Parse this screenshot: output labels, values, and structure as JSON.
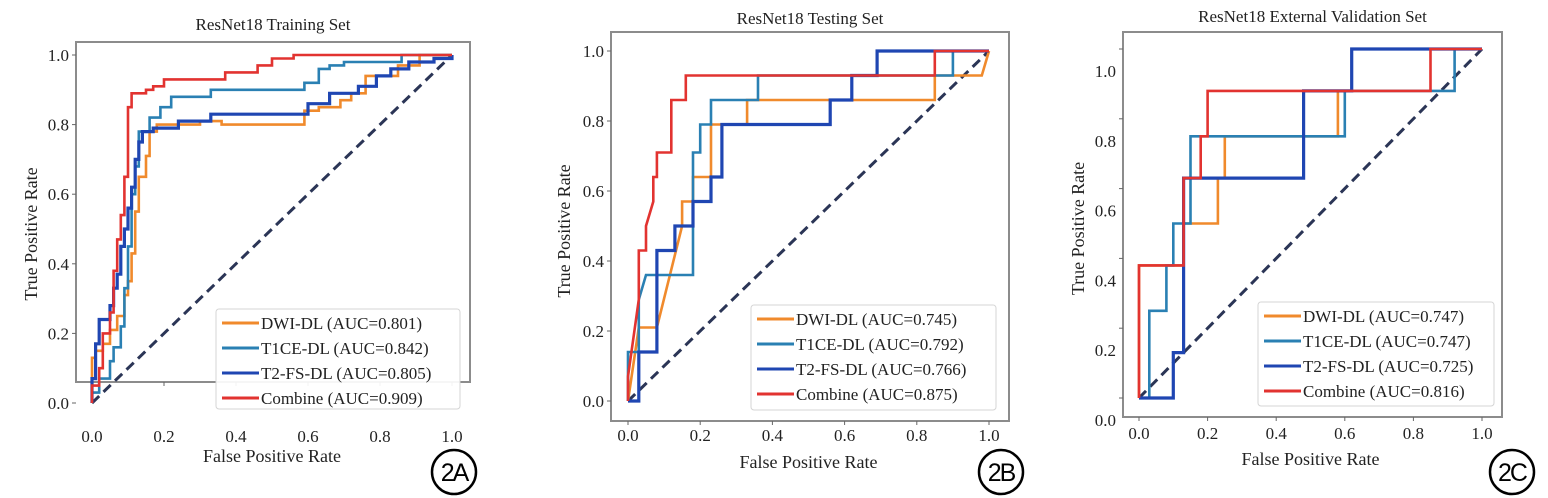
{
  "colors": {
    "DWI-DL": "#f08a2c",
    "T1CE-DL": "#2a80b3",
    "T2-FS-DL": "#1f46b2",
    "Combine": "#e23330",
    "chance": "#2b3556",
    "frame": "#8c8c8c",
    "legend_border": "#d5d5d5"
  },
  "chart_data": [
    {
      "id": "panelA",
      "type": "line",
      "badge": "2A",
      "title": "ResNet18 Training Set",
      "xlabel": "False Positive Rate",
      "ylabel": "True Positive Rate",
      "xlim": [
        0,
        1
      ],
      "ylim": [
        0,
        1
      ],
      "xticks": [
        "0.0",
        "0.2",
        "0.4",
        "0.6",
        "0.8",
        "1.0"
      ],
      "yticks": [
        "0.0",
        "0.2",
        "0.4",
        "0.6",
        "0.8",
        "1.0"
      ],
      "legend_position": "lower-right",
      "grid": false,
      "series": [
        {
          "name": "DWI-DL",
          "label": "DWI-DL (AUC=0.801)",
          "auc": 0.801,
          "x": [
            0,
            0,
            0.01,
            0.01,
            0.03,
            0.03,
            0.05,
            0.05,
            0.07,
            0.07,
            0.09,
            0.09,
            0.1,
            0.1,
            0.11,
            0.11,
            0.12,
            0.12,
            0.13,
            0.13,
            0.15,
            0.15,
            0.16,
            0.16,
            0.18,
            0.18,
            0.3,
            0.3,
            0.36,
            0.36,
            0.59,
            0.59,
            0.63,
            0.63,
            0.69,
            0.69,
            0.72,
            0.72,
            0.76,
            0.76,
            0.85,
            0.85,
            0.91,
            0.91,
            1.0
          ],
          "y": [
            0,
            0.13,
            0.13,
            0.15,
            0.15,
            0.17,
            0.17,
            0.21,
            0.21,
            0.25,
            0.25,
            0.31,
            0.31,
            0.35,
            0.35,
            0.43,
            0.43,
            0.55,
            0.55,
            0.65,
            0.65,
            0.71,
            0.71,
            0.78,
            0.78,
            0.8,
            0.8,
            0.81,
            0.81,
            0.8,
            0.8,
            0.84,
            0.84,
            0.85,
            0.85,
            0.87,
            0.87,
            0.89,
            0.89,
            0.94,
            0.94,
            0.97,
            0.97,
            1.0,
            1.0
          ]
        },
        {
          "name": "T1CE-DL",
          "label": "T1CE-DL (AUC=0.842)",
          "auc": 0.842,
          "x": [
            0,
            0,
            0.02,
            0.02,
            0.05,
            0.05,
            0.06,
            0.06,
            0.08,
            0.08,
            0.09,
            0.09,
            0.1,
            0.1,
            0.11,
            0.11,
            0.12,
            0.12,
            0.13,
            0.13,
            0.16,
            0.16,
            0.19,
            0.19,
            0.22,
            0.22,
            0.33,
            0.33,
            0.59,
            0.59,
            0.63,
            0.63,
            0.66,
            0.66,
            0.7,
            0.7,
            0.86,
            0.86,
            1.0
          ],
          "y": [
            0,
            0.03,
            0.03,
            0.07,
            0.07,
            0.12,
            0.12,
            0.16,
            0.16,
            0.22,
            0.22,
            0.33,
            0.33,
            0.45,
            0.45,
            0.6,
            0.6,
            0.68,
            0.68,
            0.78,
            0.78,
            0.82,
            0.82,
            0.85,
            0.85,
            0.88,
            0.88,
            0.9,
            0.9,
            0.92,
            0.92,
            0.96,
            0.96,
            0.97,
            0.97,
            0.98,
            0.98,
            1.0,
            1.0
          ]
        },
        {
          "name": "T2-FS-DL",
          "label": "T2-FS-DL (AUC=0.805)",
          "auc": 0.805,
          "x": [
            0,
            0,
            0.01,
            0.01,
            0.02,
            0.02,
            0.05,
            0.05,
            0.06,
            0.06,
            0.07,
            0.07,
            0.08,
            0.08,
            0.09,
            0.09,
            0.1,
            0.1,
            0.11,
            0.11,
            0.12,
            0.12,
            0.13,
            0.13,
            0.14,
            0.14,
            0.17,
            0.17,
            0.24,
            0.24,
            0.33,
            0.33,
            0.6,
            0.6,
            0.66,
            0.66,
            0.74,
            0.74,
            0.79,
            0.79,
            0.83,
            0.83,
            0.88,
            0.88,
            0.95,
            0.95,
            1.0,
            1.0
          ],
          "y": [
            0,
            0.07,
            0.07,
            0.17,
            0.17,
            0.24,
            0.24,
            0.28,
            0.28,
            0.33,
            0.33,
            0.37,
            0.37,
            0.45,
            0.45,
            0.5,
            0.5,
            0.56,
            0.56,
            0.62,
            0.62,
            0.7,
            0.7,
            0.75,
            0.75,
            0.78,
            0.78,
            0.79,
            0.79,
            0.81,
            0.81,
            0.83,
            0.83,
            0.86,
            0.86,
            0.89,
            0.89,
            0.91,
            0.91,
            0.94,
            0.94,
            0.96,
            0.96,
            0.98,
            0.98,
            0.99,
            0.99,
            1.0
          ]
        },
        {
          "name": "Combine",
          "label": "Combine (AUC=0.909)",
          "auc": 0.909,
          "x": [
            0,
            0,
            0.02,
            0.02,
            0.03,
            0.03,
            0.05,
            0.05,
            0.06,
            0.06,
            0.07,
            0.07,
            0.08,
            0.08,
            0.09,
            0.09,
            0.1,
            0.1,
            0.11,
            0.11,
            0.15,
            0.15,
            0.17,
            0.17,
            0.2,
            0.2,
            0.37,
            0.37,
            0.46,
            0.46,
            0.5,
            0.5,
            0.56,
            0.56,
            1.0
          ],
          "y": [
            0,
            0.05,
            0.05,
            0.1,
            0.1,
            0.2,
            0.2,
            0.26,
            0.26,
            0.38,
            0.38,
            0.47,
            0.47,
            0.54,
            0.54,
            0.65,
            0.65,
            0.85,
            0.85,
            0.89,
            0.89,
            0.9,
            0.9,
            0.91,
            0.91,
            0.93,
            0.93,
            0.95,
            0.95,
            0.97,
            0.97,
            0.99,
            0.99,
            1.0,
            1.0
          ]
        }
      ]
    },
    {
      "id": "panelB",
      "type": "line",
      "badge": "2B",
      "title": "ResNet18 Testing Set",
      "xlabel": "False Positive Rate",
      "ylabel": "True Positive Rate",
      "xlim": [
        0,
        1
      ],
      "ylim": [
        0,
        1
      ],
      "xticks": [
        "0.0",
        "0.2",
        "0.4",
        "0.6",
        "0.8",
        "1.0"
      ],
      "yticks": [
        "0.0",
        "0.2",
        "0.4",
        "0.6",
        "0.8",
        "1.0"
      ],
      "legend_position": "lower-right",
      "grid": false,
      "series": [
        {
          "name": "DWI-DL",
          "label": "DWI-DL (AUC=0.745)",
          "auc": 0.745,
          "x": [
            0,
            0.03,
            0.03,
            0.08,
            0.08,
            0.15,
            0.15,
            0.18,
            0.18,
            0.23,
            0.23,
            0.33,
            0.33,
            0.85,
            0.85,
            0.98,
            1.0
          ],
          "y": [
            0,
            0.21,
            0.21,
            0.21,
            0.21,
            0.5,
            0.57,
            0.57,
            0.64,
            0.64,
            0.79,
            0.79,
            0.86,
            0.86,
            0.93,
            0.93,
            1.0
          ]
        },
        {
          "name": "T1CE-DL",
          "label": "T1CE-DL (AUC=0.792)",
          "auc": 0.792,
          "x": [
            0,
            0,
            0.03,
            0.03,
            0.05,
            0.18,
            0.18,
            0.2,
            0.2,
            0.23,
            0.23,
            0.36,
            0.36,
            0.85,
            0.85,
            0.9,
            0.9,
            1.0
          ],
          "y": [
            0,
            0.14,
            0.14,
            0.29,
            0.36,
            0.36,
            0.71,
            0.71,
            0.79,
            0.79,
            0.86,
            0.86,
            0.93,
            0.93,
            0.93,
            0.93,
            1.0,
            1.0
          ]
        },
        {
          "name": "T2-FS-DL",
          "label": "T2-FS-DL (AUC=0.766)",
          "auc": 0.766,
          "x": [
            0,
            0.03,
            0.03,
            0.08,
            0.08,
            0.13,
            0.13,
            0.18,
            0.18,
            0.23,
            0.23,
            0.26,
            0.26,
            0.56,
            0.56,
            0.62,
            0.62,
            0.69,
            0.69,
            0.85,
            1.0
          ],
          "y": [
            0,
            0,
            0.14,
            0.14,
            0.43,
            0.43,
            0.5,
            0.5,
            0.57,
            0.57,
            0.64,
            0.64,
            0.79,
            0.79,
            0.86,
            0.86,
            0.93,
            0.93,
            1.0,
            1.0,
            1.0
          ]
        },
        {
          "name": "Combine",
          "label": "Combine (AUC=0.875)",
          "auc": 0.875,
          "x": [
            0,
            0,
            0.03,
            0.03,
            0.05,
            0.05,
            0.07,
            0.07,
            0.08,
            0.08,
            0.1,
            0.1,
            0.12,
            0.12,
            0.14,
            0.14,
            0.16,
            0.16,
            0.85,
            0.85,
            1.0
          ],
          "y": [
            0,
            0.07,
            0.29,
            0.43,
            0.43,
            0.5,
            0.57,
            0.64,
            0.64,
            0.71,
            0.71,
            0.71,
            0.71,
            0.86,
            0.86,
            0.86,
            0.86,
            0.93,
            0.93,
            1.0,
            1.0
          ]
        }
      ]
    },
    {
      "id": "panelC",
      "type": "line",
      "badge": "2C",
      "title": "ResNet18 External Validation Set",
      "xlabel": "False Positive Rate",
      "ylabel": "True Positive Rate",
      "xlim": [
        0,
        1
      ],
      "ylim": [
        0,
        1
      ],
      "xticks": [
        "0.0",
        "0.2",
        "0.4",
        "0.6",
        "0.8",
        "1.0"
      ],
      "yticks": [
        "0.0",
        "0.2",
        "0.4",
        "0.6",
        "0.8",
        "1.0"
      ],
      "legend_position": "lower-right",
      "grid": false,
      "series": [
        {
          "name": "DWI-DL",
          "label": "DWI-DL (AUC=0.747)",
          "auc": 0.747,
          "x": [
            0,
            0,
            0.13,
            0.13,
            0.23,
            0.23,
            0.25,
            0.25,
            0.58,
            0.58,
            0.62,
            0.62,
            1.0
          ],
          "y": [
            0,
            0.38,
            0.38,
            0.5,
            0.5,
            0.63,
            0.63,
            0.75,
            0.75,
            0.88,
            0.88,
            1.0,
            1.0
          ]
        },
        {
          "name": "T1CE-DL",
          "label": "T1CE-DL (AUC=0.747)",
          "auc": 0.747,
          "x": [
            0,
            0.03,
            0.03,
            0.08,
            0.08,
            0.1,
            0.1,
            0.15,
            0.15,
            0.6,
            0.6,
            0.92,
            0.92,
            1.0
          ],
          "y": [
            0,
            0,
            0.25,
            0.25,
            0.38,
            0.38,
            0.5,
            0.5,
            0.75,
            0.75,
            0.88,
            0.88,
            1.0,
            1.0
          ]
        },
        {
          "name": "T2-FS-DL",
          "label": "T2-FS-DL (AUC=0.725)",
          "auc": 0.725,
          "x": [
            0,
            0.1,
            0.1,
            0.13,
            0.13,
            0.17,
            0.17,
            0.48,
            0.48,
            0.62,
            0.62,
            1.0
          ],
          "y": [
            0,
            0,
            0.13,
            0.13,
            0.63,
            0.63,
            0.63,
            0.63,
            0.88,
            0.88,
            1.0,
            1.0
          ]
        },
        {
          "name": "Combine",
          "label": "Combine (AUC=0.816)",
          "auc": 0.816,
          "x": [
            0,
            0,
            0.13,
            0.13,
            0.18,
            0.18,
            0.2,
            0.2,
            0.85,
            0.85,
            1.0
          ],
          "y": [
            0,
            0.38,
            0.38,
            0.63,
            0.63,
            0.75,
            0.75,
            0.88,
            0.88,
            1.0,
            1.0
          ]
        }
      ]
    }
  ]
}
